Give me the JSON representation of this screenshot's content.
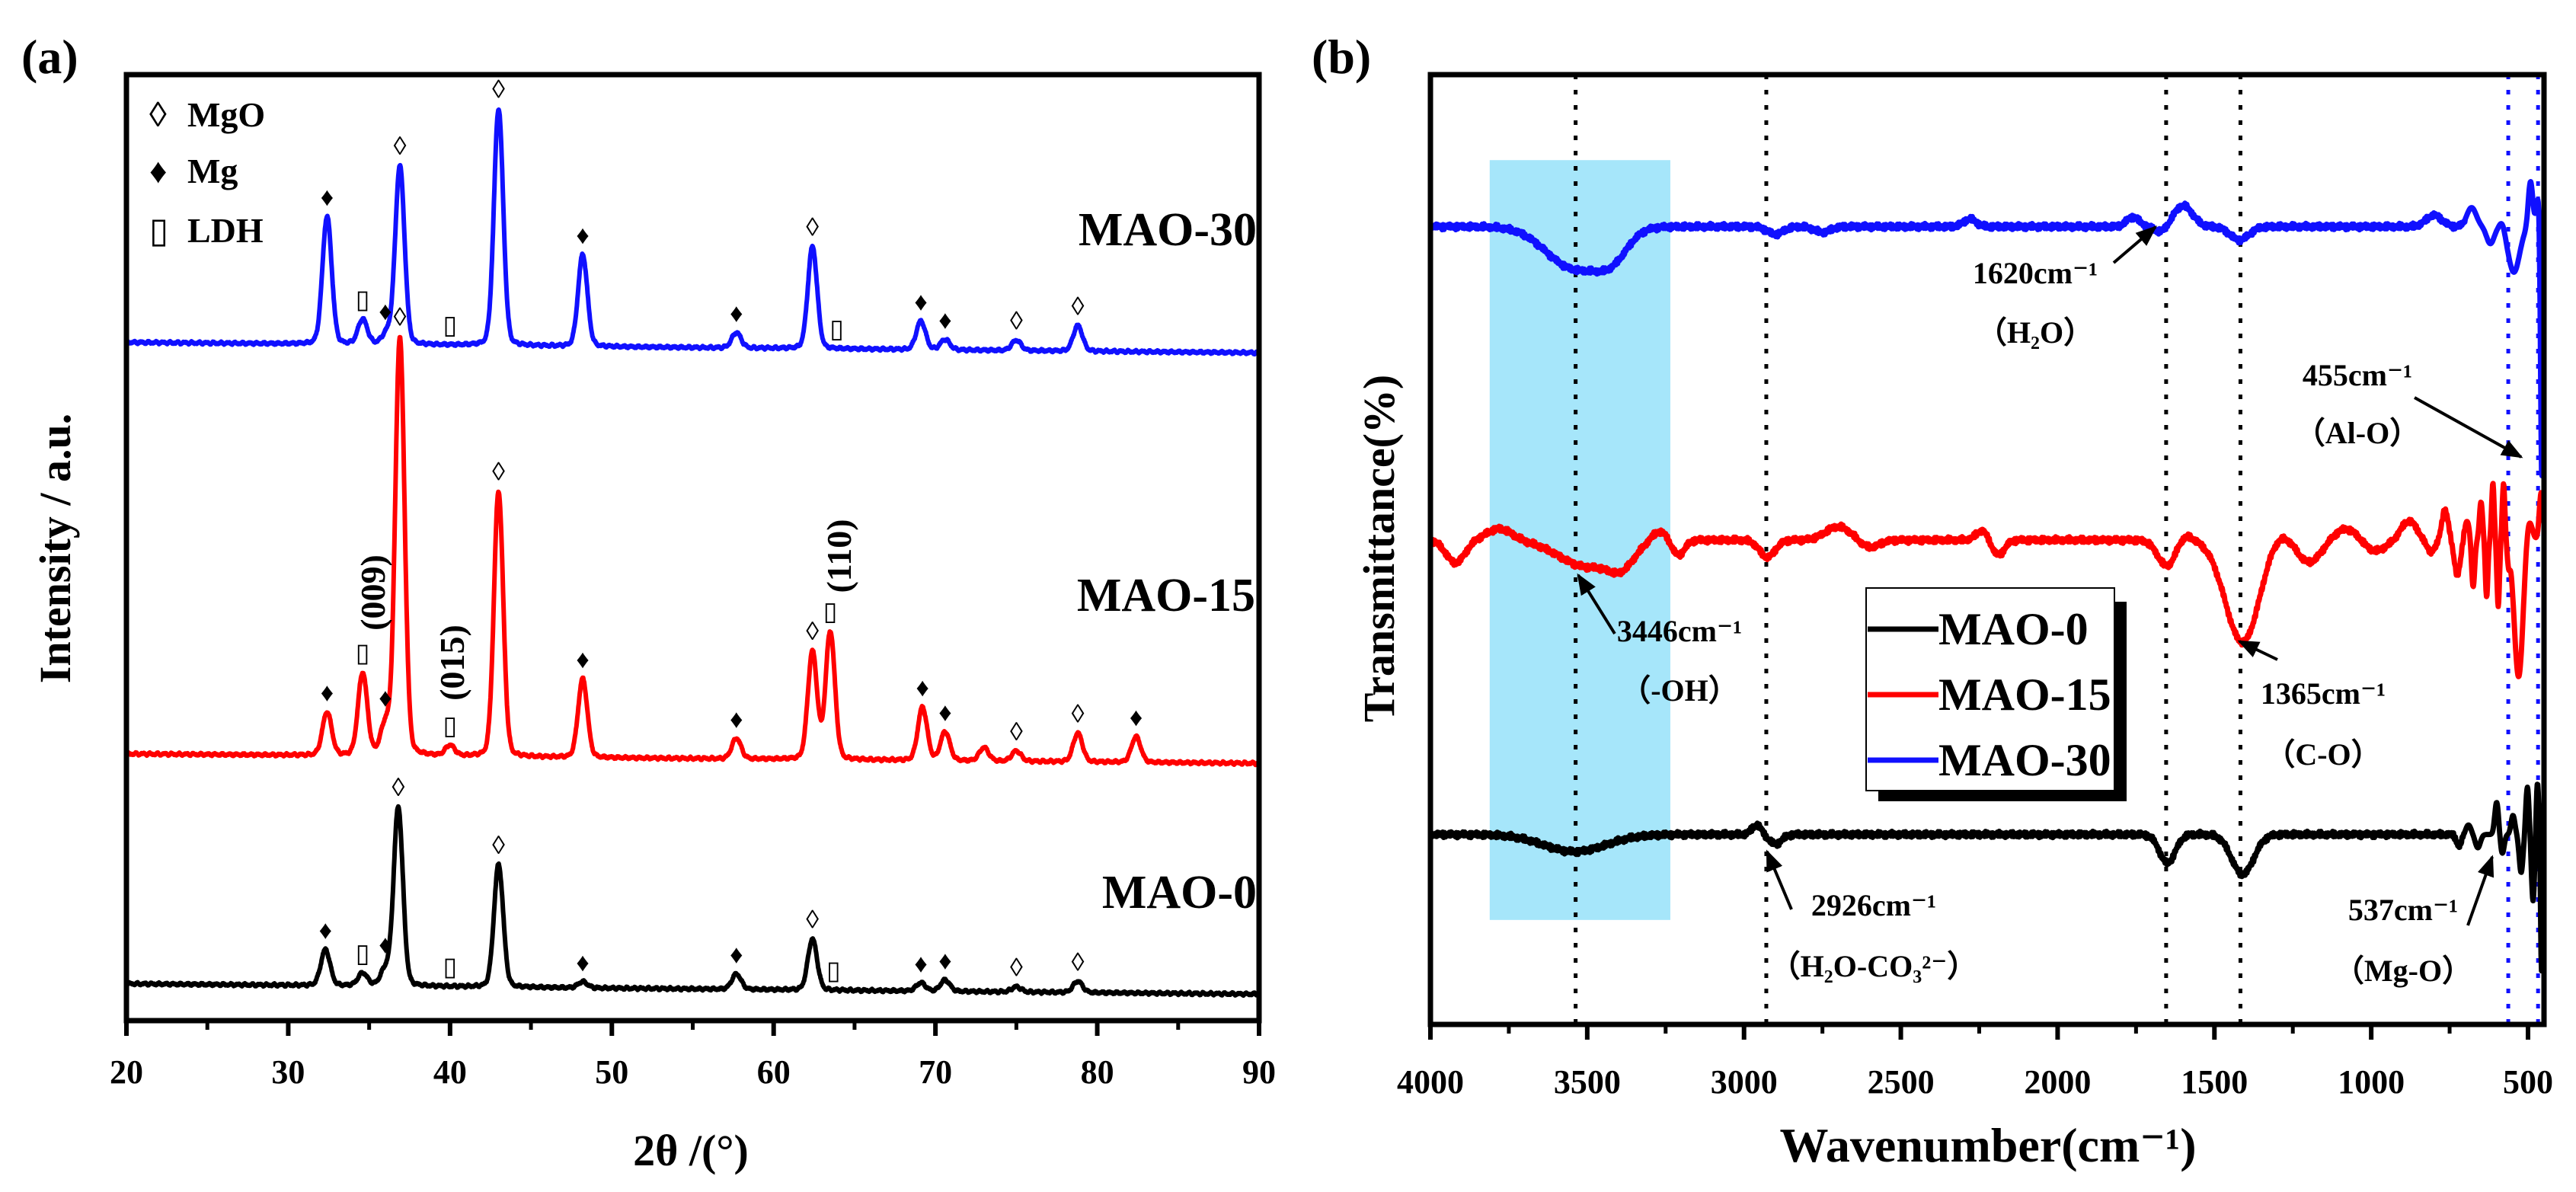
{
  "chart_data": [
    {
      "panel_label": "(a)",
      "type": "line",
      "title": "",
      "xlabel": "2θ  /(°)",
      "ylabel": "Intensity / a.u.",
      "xlim": [
        20,
        90
      ],
      "ylim": [
        0,
        100
      ],
      "xticks": [
        "20",
        "30",
        "40",
        "50",
        "60",
        "70",
        "80",
        "90"
      ],
      "xtick_values": [
        20,
        30,
        40,
        50,
        60,
        70,
        80,
        90
      ],
      "grid": false,
      "legend": {
        "placement": "top-left",
        "entries": [
          {
            "symbol": "◊",
            "label": "MgO",
            "kind": "open-diamond"
          },
          {
            "symbol": "♦",
            "label": "Mg",
            "kind": "filled-diamond"
          },
          {
            "symbol": "▯",
            "label": "LDH",
            "kind": "rectangle"
          }
        ]
      },
      "series": [
        {
          "name": "MAO-30",
          "color": "#1010ff",
          "baseline": [
            71.7,
            70.6
          ],
          "peaks": [
            [
              32.4,
              12.5
            ],
            [
              34.6,
              2.4
            ],
            [
              36.1,
              1.0
            ],
            [
              36.9,
              17.5
            ],
            [
              43.0,
              23.2
            ],
            [
              48.2,
              9.0
            ],
            [
              57.7,
              1.5
            ],
            [
              62.4,
              10.0
            ],
            [
              69.1,
              2.8
            ],
            [
              70.6,
              1.0
            ],
            [
              75.0,
              1.0
            ],
            [
              78.8,
              2.5
            ]
          ],
          "markers": [
            [
              32.4,
              "Mg"
            ],
            [
              34.6,
              "LDH"
            ],
            [
              36.0,
              "Mg"
            ],
            [
              36.9,
              "MgO"
            ],
            [
              40.0,
              "LDH"
            ],
            [
              43.0,
              "MgO"
            ],
            [
              48.2,
              "Mg"
            ],
            [
              57.7,
              "Mg"
            ],
            [
              62.4,
              "MgO"
            ],
            [
              63.9,
              "LDH"
            ],
            [
              69.1,
              "Mg"
            ],
            [
              70.6,
              "Mg"
            ],
            [
              75.0,
              "MgO"
            ],
            [
              78.8,
              "MgO"
            ]
          ]
        },
        {
          "name": "MAO-15",
          "color": "#ff0000",
          "baseline": [
            28.2,
            27.2
          ],
          "peaks": [
            [
              32.4,
              4.2
            ],
            [
              34.6,
              8.0
            ],
            [
              36.0,
              2.8
            ],
            [
              36.9,
              41.0
            ],
            [
              40.0,
              1.0
            ],
            [
              43.0,
              26.0
            ],
            [
              48.2,
              7.7
            ],
            [
              57.7,
              2.0
            ],
            [
              62.4,
              10.5
            ],
            [
              63.5,
              12.5
            ],
            [
              69.2,
              5.2
            ],
            [
              70.6,
              2.8
            ],
            [
              73.0,
              1.3
            ],
            [
              75.0,
              1.0
            ],
            [
              78.8,
              2.8
            ],
            [
              82.4,
              2.5
            ]
          ],
          "markers": [
            [
              32.4,
              "Mg"
            ],
            [
              34.6,
              "LDH"
            ],
            [
              36.0,
              "Mg"
            ],
            [
              36.9,
              "MgO"
            ],
            [
              40.0,
              "LDH"
            ],
            [
              43.0,
              "MgO"
            ],
            [
              48.2,
              "Mg"
            ],
            [
              57.7,
              "Mg"
            ],
            [
              62.4,
              "MgO"
            ],
            [
              63.5,
              "LDH"
            ],
            [
              69.2,
              "Mg"
            ],
            [
              70.6,
              "Mg"
            ],
            [
              75.0,
              "MgO"
            ],
            [
              78.8,
              "MgO"
            ],
            [
              82.4,
              "Mg"
            ]
          ]
        },
        {
          "name": "MAO-0",
          "color": "#000000",
          "baseline": [
            3.9,
            2.8
          ],
          "peaks": [
            [
              32.3,
              3.5
            ],
            [
              34.6,
              1.2
            ],
            [
              36.0,
              1.5
            ],
            [
              36.8,
              17.5
            ],
            [
              43.0,
              12.0
            ],
            [
              48.2,
              0.6
            ],
            [
              57.7,
              1.5
            ],
            [
              62.4,
              5.0
            ],
            [
              69.1,
              0.8
            ],
            [
              70.6,
              1.1
            ],
            [
              75.0,
              0.5
            ],
            [
              78.8,
              1.1
            ]
          ],
          "markers": [
            [
              32.3,
              "Mg"
            ],
            [
              34.6,
              "LDH"
            ],
            [
              36.0,
              "Mg"
            ],
            [
              36.8,
              "MgO"
            ],
            [
              40.0,
              "LDH"
            ],
            [
              43.0,
              "MgO"
            ],
            [
              48.2,
              "Mg"
            ],
            [
              57.7,
              "Mg"
            ],
            [
              62.4,
              "MgO"
            ],
            [
              63.7,
              "LDH"
            ],
            [
              69.1,
              "Mg"
            ],
            [
              70.6,
              "Mg"
            ],
            [
              75.0,
              "MgO"
            ],
            [
              78.8,
              "MgO"
            ]
          ]
        }
      ],
      "annotations": [
        {
          "text": "(009)",
          "x": 35.3
        },
        {
          "text": "(015)",
          "x": 40.2
        },
        {
          "text": "(110)",
          "x": 64.1
        }
      ]
    },
    {
      "panel_label": "(b)",
      "type": "line",
      "title": "",
      "xlabel": "Wavenumber(cm⁻¹)",
      "ylabel": "Transmittance(%)",
      "xlim": [
        4000,
        449
      ],
      "ylim": [
        0,
        100
      ],
      "xticks": [
        "4000",
        "3500",
        "3000",
        "2500",
        "2000",
        "1500",
        "1000",
        "500"
      ],
      "xtick_values": [
        4000,
        3500,
        3000,
        2500,
        2000,
        1500,
        1000,
        500
      ],
      "grid": false,
      "legend": {
        "placement": "center",
        "entries": [
          "MAO-0",
          "MAO-15",
          "MAO-30"
        ]
      },
      "highlight_band": {
        "x": [
          3811,
          3235
        ],
        "y": [
          11,
          91
        ],
        "color": "#a6e6fa"
      },
      "reference_lines": [
        {
          "x": 3537,
          "color": "#000000"
        },
        {
          "x": 2929,
          "color": "#000000"
        },
        {
          "x": 1654,
          "color": "#000000"
        },
        {
          "x": 1417,
          "color": "#000000"
        },
        {
          "x": 563,
          "color": "#1010ff"
        },
        {
          "x": 468,
          "color": "#1010ff"
        }
      ],
      "series": [
        {
          "name": "MAO-0",
          "color": "#000000",
          "offset": 20,
          "bands": [
            [
              3540,
              -1.8,
              100
            ],
            [
              2960,
              1.0,
              15
            ],
            [
              2900,
              -1.0,
              20
            ],
            [
              1650,
              -3.0,
              25
            ],
            [
              1410,
              -4.2,
              35
            ],
            [
              720,
              -1.2,
              8
            ],
            [
              690,
              1.0,
              8
            ],
            [
              660,
              -1.4,
              8
            ],
            [
              600,
              3.4,
              6
            ],
            [
              582,
              -2.0,
              6
            ],
            [
              548,
              2.0,
              6
            ],
            [
              522,
              -4.0,
              6
            ],
            [
              502,
              5.0,
              5
            ],
            [
              484,
              -7.0,
              5
            ],
            [
              470,
              5.5,
              4
            ],
            [
              457,
              -14.5,
              3
            ],
            [
              449,
              4.0,
              3
            ]
          ]
        },
        {
          "name": "MAO-15",
          "color": "#ff0000",
          "offset": 51,
          "bands": [
            [
              3920,
              -2.4,
              30
            ],
            [
              3780,
              1.2,
              40
            ],
            [
              3500,
              -2.8,
              90
            ],
            [
              3390,
              -2.0,
              40
            ],
            [
              3270,
              1.0,
              25
            ],
            [
              3210,
              -1.6,
              20
            ],
            [
              2926,
              -1.8,
              25
            ],
            [
              2700,
              1.4,
              40
            ],
            [
              2600,
              -0.8,
              30
            ],
            [
              2240,
              1.0,
              20
            ],
            [
              2190,
              -1.6,
              20
            ],
            [
              1650,
              -2.8,
              30
            ],
            [
              1600,
              0.8,
              25
            ],
            [
              1410,
              -10.8,
              55
            ],
            [
              1300,
              1.2,
              45
            ],
            [
              1200,
              -2.4,
              40
            ],
            [
              1080,
              1.2,
              40
            ],
            [
              990,
              -1.2,
              35
            ],
            [
              880,
              2.0,
              25
            ],
            [
              810,
              -1.2,
              15
            ],
            [
              765,
              3.2,
              10
            ],
            [
              725,
              -3.6,
              10
            ],
            [
              695,
              2.0,
              8
            ],
            [
              675,
              -5.0,
              5
            ],
            [
              650,
              4.0,
              5
            ],
            [
              632,
              -6.0,
              4
            ],
            [
              612,
              6.0,
              4
            ],
            [
              595,
              -7.0,
              4
            ],
            [
              578,
              6.0,
              4
            ],
            [
              562,
              -2.0,
              4
            ],
            [
              530,
              -14.4,
              14
            ],
            [
              498,
              2.5,
              10
            ],
            [
              458,
              5.0,
              6
            ]
          ]
        },
        {
          "name": "MAO-30",
          "color": "#1010ff",
          "offset": 84,
          "bands": [
            [
              3540,
              -4.4,
              90
            ],
            [
              3420,
              -2.4,
              50
            ],
            [
              2900,
              -0.8,
              25
            ],
            [
              2750,
              -0.6,
              25
            ],
            [
              2280,
              0.8,
              20
            ],
            [
              1760,
              1.0,
              20
            ],
            [
              1670,
              -0.6,
              20
            ],
            [
              1600,
              2.2,
              30
            ],
            [
              1420,
              -1.4,
              30
            ],
            [
              800,
              1.2,
              25
            ],
            [
              680,
              2.0,
              15
            ],
            [
              620,
              -1.8,
              12
            ],
            [
              582,
              0.8,
              8
            ],
            [
              545,
              -4.8,
              18
            ],
            [
              492,
              4.8,
              7
            ],
            [
              468,
              3.0,
              6
            ],
            [
              456,
              -27.0,
              4
            ],
            [
              448,
              5.0,
              3
            ]
          ]
        }
      ],
      "annotations": [
        {
          "text": "1620cm⁻¹",
          "sub": "（H₂O）"
        },
        {
          "text": "455cm⁻¹",
          "sub": "（Al-O）"
        },
        {
          "text": "3446cm⁻¹",
          "sub": "（-OH）"
        },
        {
          "text": "1365cm⁻¹",
          "sub": "（C-O）"
        },
        {
          "text": "2926cm⁻¹",
          "sub": "（H₂O-CO₃²⁻）"
        },
        {
          "text": "537cm⁻¹",
          "sub": "（Mg-O）"
        }
      ]
    }
  ]
}
